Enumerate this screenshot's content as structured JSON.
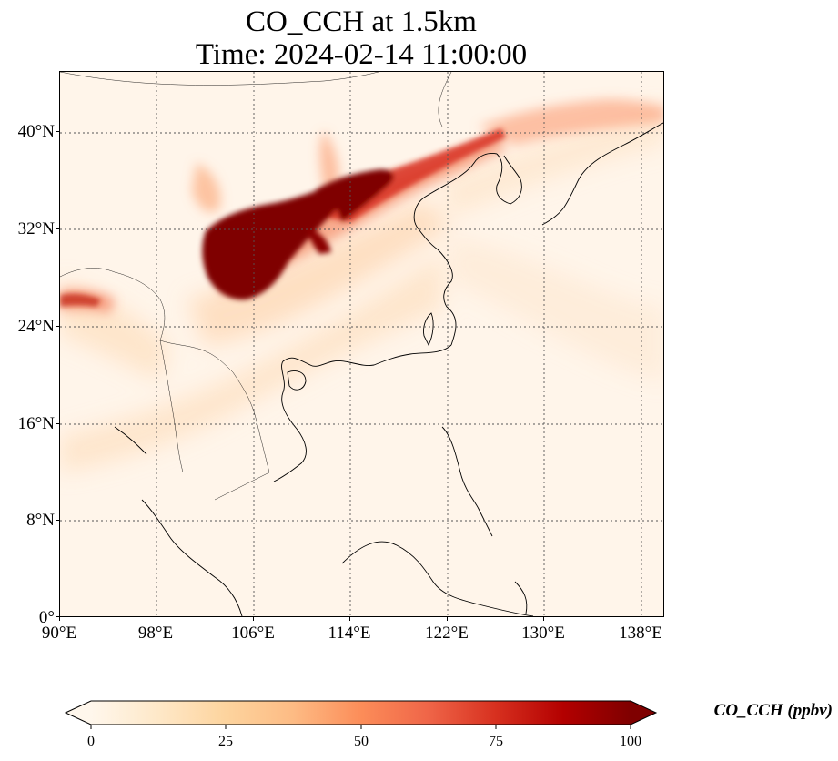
{
  "title": {
    "line1": "CO_CCH at 1.5km",
    "line2": "Time: 2024-02-14 11:00:00"
  },
  "map": {
    "variable": "CO_CCH",
    "height_level": "1.5km",
    "projection": "PlateCarree",
    "lon_range": [
      90,
      140
    ],
    "lat_range": [
      0,
      45
    ],
    "gridlines": "dotted",
    "coastlines": true,
    "country_borders": true
  },
  "axes": {
    "lat_ticks": [
      "0°",
      "8°N",
      "16°N",
      "24°N",
      "32°N",
      "40°N"
    ],
    "lon_ticks": [
      "90°E",
      "98°E",
      "106°E",
      "114°E",
      "122°E",
      "130°E",
      "138°E"
    ]
  },
  "colorbar": {
    "label": "CO_CCH (ppbv)",
    "colormap": "OrRd",
    "min": 0,
    "max": 100,
    "extend": "both",
    "ticks": [
      "0",
      "25",
      "50",
      "75",
      "100"
    ],
    "colors": [
      "#fff7ec",
      "#fee8c8",
      "#fdd49e",
      "#fdbb84",
      "#fc8d59",
      "#ef6548",
      "#d7301f",
      "#b30000",
      "#7f0000"
    ]
  }
}
